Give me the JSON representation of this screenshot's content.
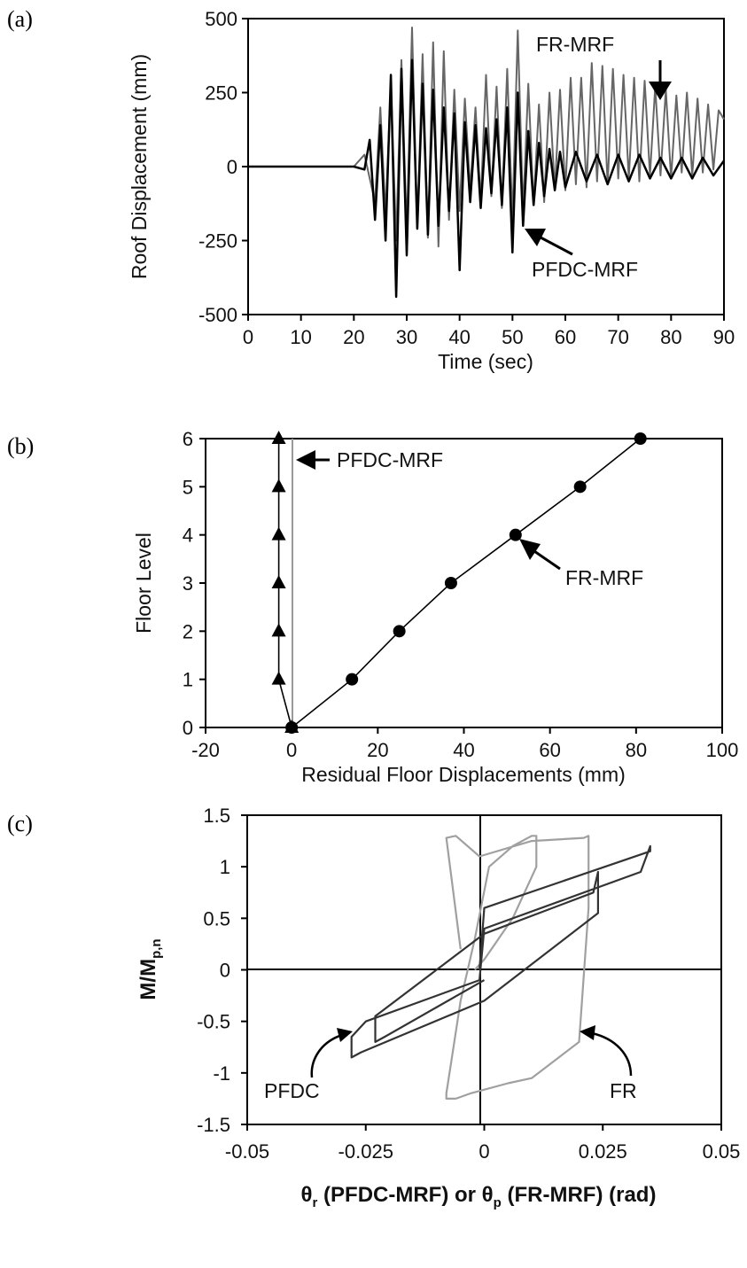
{
  "panel_labels": [
    "(a)",
    "(b)",
    "(c)"
  ],
  "chart_data": [
    {
      "type": "line",
      "panel": "(a)",
      "title": "",
      "xlabel": "Time (sec)",
      "ylabel": "Roof Displacement (mm)",
      "xlim": [
        0,
        90
      ],
      "ylim": [
        -500,
        500
      ],
      "x_ticks": [
        0,
        10,
        20,
        30,
        40,
        50,
        60,
        70,
        80,
        90
      ],
      "y_ticks": [
        -500,
        -250,
        0,
        250,
        500
      ],
      "grid": false,
      "series": [
        {
          "name": "FR-MRF",
          "color": "#666666",
          "x": [
            0,
            20,
            22,
            24,
            25,
            26,
            27,
            28,
            29,
            30,
            31,
            32,
            33,
            34,
            35,
            36,
            37,
            38,
            39,
            40,
            41,
            42,
            43,
            44,
            45,
            46,
            47,
            48,
            49,
            50,
            51,
            52,
            53,
            54,
            55,
            56,
            57,
            58,
            59,
            60,
            61,
            62,
            63,
            64,
            65,
            66,
            67,
            68,
            69,
            70,
            71,
            72,
            73,
            74,
            75,
            76,
            77,
            78,
            79,
            80,
            81,
            82,
            83,
            84,
            85,
            86,
            87,
            88,
            89,
            90
          ],
          "y": [
            0,
            0,
            40,
            -120,
            200,
            -160,
            280,
            -250,
            360,
            -220,
            470,
            -210,
            380,
            -240,
            420,
            -270,
            390,
            -180,
            260,
            -150,
            230,
            -80,
            200,
            -120,
            310,
            -100,
            270,
            -140,
            330,
            -180,
            460,
            -150,
            280,
            -130,
            210,
            -120,
            250,
            -80,
            260,
            -80,
            300,
            -60,
            300,
            -70,
            350,
            -50,
            340,
            -60,
            330,
            -40,
            310,
            -40,
            300,
            -50,
            290,
            -30,
            270,
            -30,
            260,
            -40,
            240,
            -20,
            250,
            -30,
            230,
            -20,
            210,
            -10,
            190,
            160
          ]
        },
        {
          "name": "PFDC-MRF",
          "color": "#000000",
          "x": [
            0,
            20,
            22,
            23,
            24,
            25,
            26,
            27,
            28,
            29,
            30,
            31,
            32,
            33,
            34,
            35,
            36,
            37,
            38,
            39,
            40,
            41,
            42,
            43,
            44,
            45,
            46,
            47,
            48,
            49,
            50,
            51,
            52,
            53,
            54,
            55,
            56,
            57,
            58,
            59,
            60,
            62,
            64,
            66,
            68,
            70,
            72,
            74,
            76,
            78,
            80,
            82,
            84,
            86,
            88,
            90
          ],
          "y": [
            0,
            0,
            -10,
            90,
            -180,
            140,
            -250,
            310,
            -440,
            330,
            -300,
            360,
            -210,
            280,
            -230,
            260,
            -200,
            200,
            -150,
            180,
            -350,
            150,
            -120,
            140,
            -140,
            130,
            -90,
            160,
            -130,
            200,
            -290,
            250,
            -200,
            120,
            -130,
            80,
            -100,
            60,
            -80,
            50,
            -70,
            50,
            -50,
            40,
            -60,
            40,
            -50,
            40,
            -40,
            30,
            -40,
            30,
            -40,
            30,
            -30,
            20
          ]
        }
      ],
      "annotations": [
        {
          "text": "FR-MRF",
          "arrow": "down"
        },
        {
          "text": "PFDC-MRF",
          "arrow": "up-left"
        }
      ]
    },
    {
      "type": "line",
      "panel": "(b)",
      "title": "",
      "xlabel": "Residual Floor Displacements (mm)",
      "ylabel": "Floor Level",
      "xlim": [
        -20,
        100
      ],
      "ylim": [
        0,
        6
      ],
      "x_ticks": [
        -20,
        0,
        20,
        40,
        60,
        80,
        100
      ],
      "y_ticks": [
        0,
        1,
        2,
        3,
        4,
        5,
        6
      ],
      "grid": false,
      "series": [
        {
          "name": "PFDC-MRF",
          "marker": "triangle",
          "color": "#000000",
          "x": [
            0,
            -3,
            -3,
            -3,
            -3,
            -3,
            -3
          ],
          "y": [
            0,
            1,
            2,
            3,
            4,
            5,
            6
          ]
        },
        {
          "name": "FR-MRF",
          "marker": "circle",
          "color": "#000000",
          "x": [
            0,
            14,
            25,
            37,
            52,
            67,
            81
          ],
          "y": [
            0,
            1,
            2,
            3,
            4,
            5,
            6
          ]
        }
      ],
      "annotations": [
        {
          "text": "PFDC-MRF",
          "arrow": "left"
        },
        {
          "text": "FR-MRF",
          "arrow": "up-left"
        }
      ]
    },
    {
      "type": "line",
      "panel": "(c)",
      "title": "",
      "xlabel_parts": [
        "θ",
        "r",
        " (PFDC-MRF) or  θ",
        "p",
        " (FR-MRF) (rad)"
      ],
      "ylabel_parts": [
        "M/M",
        "p,n"
      ],
      "xlim": [
        -0.05,
        0.05
      ],
      "ylim": [
        -1.5,
        1.5
      ],
      "x_tick_labels": [
        "-0.05",
        "-0.025",
        "0",
        "0.025",
        "0.05"
      ],
      "y_tick_labels": [
        "1.5",
        "1",
        "0.5",
        "0",
        "-0.5",
        "-1",
        "-1.5"
      ],
      "x_ticks": [
        -0.05,
        -0.025,
        0,
        0.025,
        0.05
      ],
      "y_ticks": [
        1.5,
        1,
        0.5,
        0,
        -0.5,
        -1,
        -1.5
      ],
      "grid": false,
      "series": [
        {
          "name": "FR",
          "color": "#a0a0a0",
          "x": [
            -0.002,
            0.0,
            0.006,
            0.011,
            0.011,
            0.01,
            0.006,
            0.001,
            -0.002,
            -0.005,
            -0.007,
            -0.008,
            -0.008,
            -0.006,
            -0.003,
            0.005,
            0.01,
            0.02,
            0.022,
            0.022,
            0.021,
            0.01,
            -0.001,
            -0.006,
            -0.008,
            -0.005
          ],
          "y": [
            0.0,
            0.1,
            0.5,
            1.0,
            1.3,
            1.3,
            1.2,
            1.0,
            0.3,
            -0.3,
            -0.9,
            -1.2,
            -1.25,
            -1.25,
            -1.2,
            -1.1,
            -1.05,
            -0.7,
            0.6,
            1.3,
            1.28,
            1.25,
            1.1,
            1.3,
            1.28,
            0.2
          ]
        },
        {
          "name": "PFDC",
          "color": "#333333",
          "x": [
            -0.001,
            0.0,
            0.035,
            0.035,
            0.033,
            0.0,
            -0.001,
            -0.025,
            -0.028,
            -0.028,
            -0.026,
            0.0,
            0.024,
            0.024,
            0.023,
            0.0,
            -0.023,
            -0.023,
            -0.021,
            0.0
          ],
          "y": [
            0.0,
            0.6,
            1.15,
            1.2,
            0.95,
            0.4,
            -0.1,
            -0.5,
            -0.65,
            -0.85,
            -0.8,
            -0.3,
            0.55,
            0.95,
            0.75,
            0.35,
            -0.45,
            -0.7,
            -0.65,
            -0.1
          ]
        }
      ],
      "annotations": [
        {
          "text": "PFDC",
          "arrow": "up-right"
        },
        {
          "text": "FR",
          "arrow": "up-left"
        }
      ]
    }
  ]
}
